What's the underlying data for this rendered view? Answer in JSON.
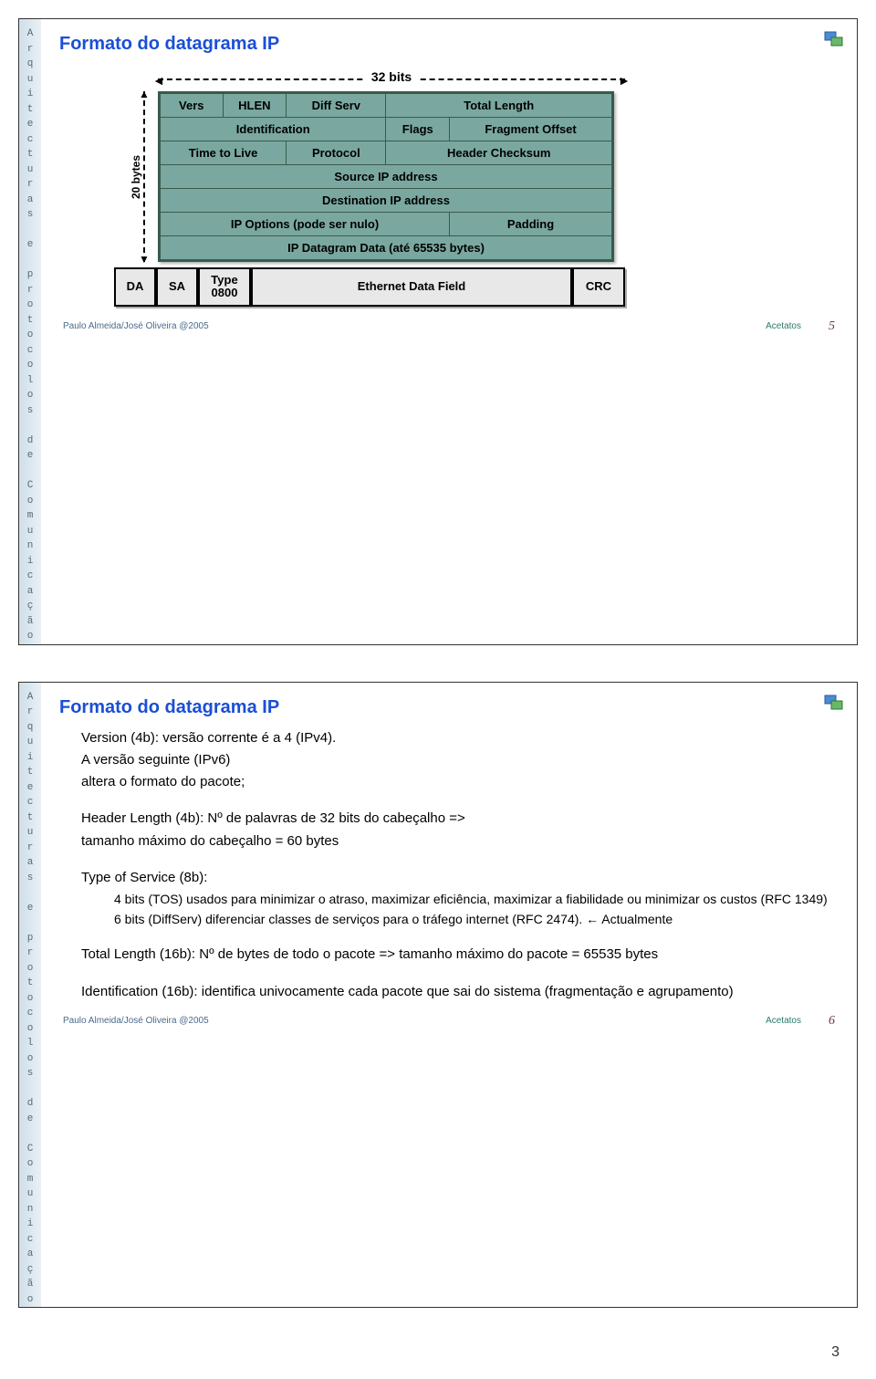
{
  "sidebar_text": [
    "A",
    "r",
    "q",
    "u",
    "i",
    "t",
    "e",
    "c",
    "t",
    "u",
    "r",
    "a",
    "s",
    " ",
    "e",
    " ",
    "p",
    "r",
    "o",
    "t",
    "o",
    "c",
    "o",
    "l",
    "o",
    "s",
    " ",
    "d",
    "e",
    " ",
    "C",
    "o",
    "m",
    "u",
    "n",
    "i",
    "c",
    "a",
    "ç",
    "ã",
    "o"
  ],
  "slide1": {
    "title": "Formato do datagrama IP",
    "width_label": "32 bits",
    "height_label": "20 bytes",
    "ip_header": {
      "r1": {
        "vers": "Vers",
        "hlen": "HLEN",
        "diff": "Diff Serv",
        "tlen": "Total Length"
      },
      "r2": {
        "id": "Identification",
        "flags": "Flags",
        "frag": "Fragment Offset"
      },
      "r3": {
        "ttl": "Time to Live",
        "proto": "Protocol",
        "chk": "Header Checksum"
      },
      "r4": "Source IP address",
      "r5": "Destination IP address",
      "r6": {
        "opt": "IP Options (pode ser nulo)",
        "pad": "Padding"
      },
      "r7": "IP Datagram Data  (até 65535 bytes)"
    },
    "eth": {
      "da": "DA",
      "sa": "SA",
      "type1": "Type",
      "type2": "0800",
      "data": "Ethernet Data Field",
      "crc": "CRC"
    },
    "footer_left": "Paulo Almeida/José Oliveira  @2005",
    "footer_acetatos": "Acetatos",
    "footer_page": "5"
  },
  "slide2": {
    "title": "Formato do datagrama IP",
    "line1": "Version (4b): versão corrente é a 4 (IPv4).",
    "line2": "A versão seguinte (IPv6)",
    "line3": "altera o formato do pacote;",
    "line4": "Header Length (4b): Nº de palavras de 32 bits do cabeçalho =>",
    "line5": "tamanho máximo do cabeçalho = 60 bytes",
    "line6": "Type of Service (8b):",
    "line7": "4 bits (TOS) usados para minimizar o atraso, maximizar eficiência, maximizar a fiabilidade ou minimizar os custos (RFC 1349)",
    "line8": "6 bits (DiffServ)  diferenciar classes de serviços para o tráfego internet (RFC 2474). ← Actualmente",
    "line9": "Total Length (16b): Nº de bytes de todo o pacote => tamanho máximo do pacote = 65535 bytes",
    "line10": "Identification (16b): identifica univocamente cada pacote que sai do sistema (fragmentação e agrupamento)",
    "footer_left": "Paulo Almeida/José Oliveira  @2005",
    "footer_acetatos": "Acetatos",
    "footer_page": "6"
  },
  "page_number": "3",
  "colors": {
    "title": "#1a4fd6",
    "table_bg": "#7aa8a0",
    "table_border": "#3a5a4a",
    "eth_bg": "#e8e8e8",
    "sidebar_bg": "#d0dfe8"
  }
}
